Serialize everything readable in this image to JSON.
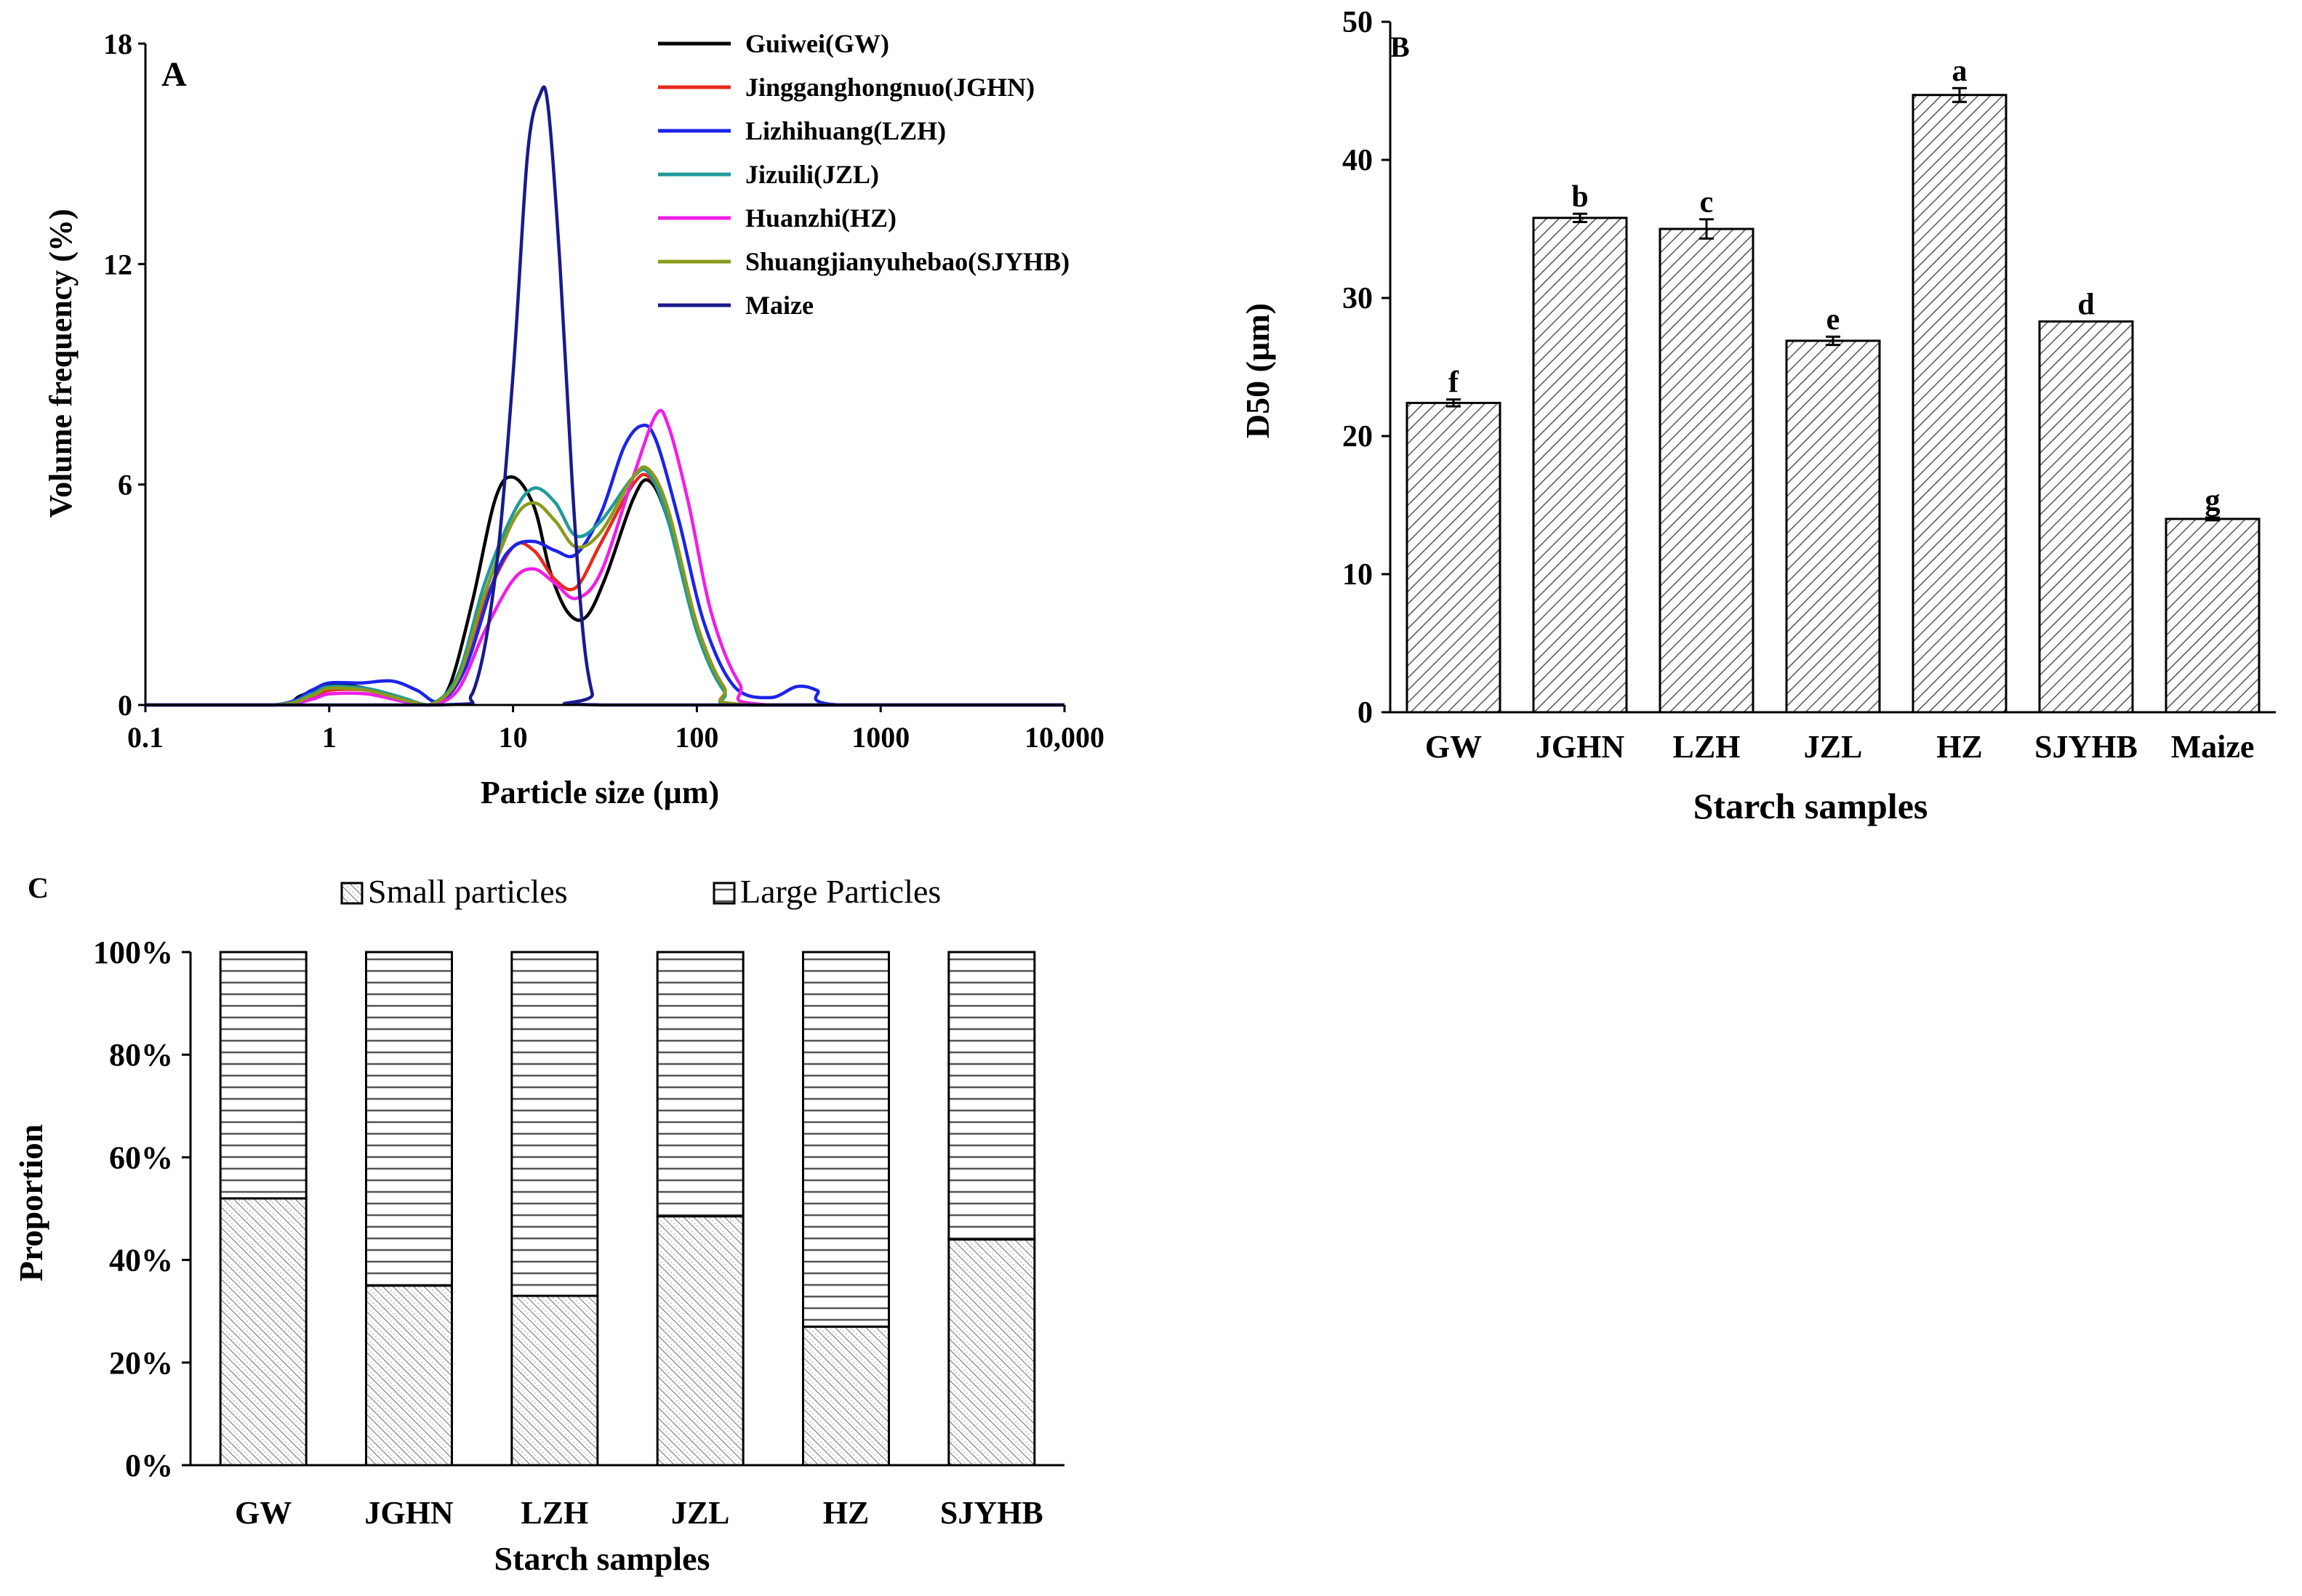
{
  "panel_labels": {
    "a": "A",
    "b": "B",
    "c": "C"
  },
  "chart_data": [
    {
      "id": "A",
      "type": "line",
      "xlabel": "Particle size (µm)",
      "ylabel": "Volume frequency (%)",
      "xscale": "log",
      "xlim": [
        0.1,
        10000
      ],
      "ylim": [
        0,
        18
      ],
      "xticks": [
        0.1,
        1,
        10,
        100,
        1000,
        10000
      ],
      "xtick_labels": [
        "0.1",
        "1",
        "10",
        "100",
        "1000",
        "10,000"
      ],
      "yticks": [
        0,
        6,
        12,
        18
      ],
      "ytick_labels": [
        "0",
        "6",
        "12",
        "18"
      ],
      "legend": "top-right",
      "series": [
        {
          "name": "Guiwei(GW)",
          "color": "#000000",
          "points": [
            [
              0.1,
              0
            ],
            [
              0.5,
              0
            ],
            [
              0.7,
              0.25
            ],
            [
              1,
              0.55
            ],
            [
              1.6,
              0.45
            ],
            [
              2.5,
              0.15
            ],
            [
              3.5,
              0
            ],
            [
              4.5,
              0.5
            ],
            [
              6,
              2.8
            ],
            [
              8,
              5.6
            ],
            [
              10,
              6.2
            ],
            [
              13,
              5.4
            ],
            [
              16,
              3.6
            ],
            [
              20,
              2.5
            ],
            [
              25,
              2.4
            ],
            [
              32,
              3.5
            ],
            [
              45,
              5.6
            ],
            [
              55,
              6.1
            ],
            [
              70,
              5.0
            ],
            [
              100,
              2.0
            ],
            [
              140,
              0.4
            ],
            [
              200,
              0
            ],
            [
              10000,
              0
            ]
          ]
        },
        {
          "name": "Jingganghongnuo(JGHN)",
          "color": "#e8281e",
          "points": [
            [
              0.1,
              0
            ],
            [
              0.5,
              0
            ],
            [
              0.8,
              0.2
            ],
            [
              1,
              0.4
            ],
            [
              1.6,
              0.4
            ],
            [
              2.5,
              0.15
            ],
            [
              3.5,
              0
            ],
            [
              5,
              0.7
            ],
            [
              7,
              2.8
            ],
            [
              10,
              4.3
            ],
            [
              13,
              4.2
            ],
            [
              17,
              3.4
            ],
            [
              22,
              3.2
            ],
            [
              30,
              4.4
            ],
            [
              45,
              6.0
            ],
            [
              55,
              6.2
            ],
            [
              70,
              5.2
            ],
            [
              100,
              2.2
            ],
            [
              140,
              0.5
            ],
            [
              200,
              0
            ],
            [
              10000,
              0
            ]
          ]
        },
        {
          "name": "Lizhihuang(LZH)",
          "color": "#1b24e8",
          "points": [
            [
              0.1,
              0
            ],
            [
              0.5,
              0
            ],
            [
              0.8,
              0.4
            ],
            [
              1,
              0.6
            ],
            [
              1.5,
              0.6
            ],
            [
              2.2,
              0.65
            ],
            [
              3,
              0.4
            ],
            [
              4,
              0.1
            ],
            [
              5.5,
              1.0
            ],
            [
              8,
              3.5
            ],
            [
              10,
              4.3
            ],
            [
              13,
              4.45
            ],
            [
              17,
              4.2
            ],
            [
              22,
              4.1
            ],
            [
              30,
              5.2
            ],
            [
              40,
              7.0
            ],
            [
              50,
              7.6
            ],
            [
              60,
              7.2
            ],
            [
              80,
              5.0
            ],
            [
              110,
              2.2
            ],
            [
              160,
              0.5
            ],
            [
              250,
              0.2
            ],
            [
              350,
              0.5
            ],
            [
              450,
              0.4
            ],
            [
              600,
              0
            ],
            [
              10000,
              0
            ]
          ]
        },
        {
          "name": "Jizuili(JZL)",
          "color": "#1f9a9a",
          "points": [
            [
              0.1,
              0
            ],
            [
              0.5,
              0
            ],
            [
              0.8,
              0.3
            ],
            [
              1,
              0.5
            ],
            [
              1.6,
              0.45
            ],
            [
              2.5,
              0.2
            ],
            [
              3.5,
              0
            ],
            [
              5,
              0.8
            ],
            [
              7,
              3.3
            ],
            [
              10,
              5.2
            ],
            [
              13,
              5.9
            ],
            [
              17,
              5.5
            ],
            [
              22,
              4.6
            ],
            [
              30,
              5.0
            ],
            [
              45,
              6.2
            ],
            [
              55,
              6.3
            ],
            [
              70,
              5.0
            ],
            [
              100,
              2.0
            ],
            [
              140,
              0.4
            ],
            [
              200,
              0
            ],
            [
              10000,
              0
            ]
          ]
        },
        {
          "name": "Huanzhi(HZ)",
          "color": "#f01ee8",
          "points": [
            [
              0.1,
              0
            ],
            [
              0.5,
              0
            ],
            [
              0.8,
              0.15
            ],
            [
              1,
              0.3
            ],
            [
              1.6,
              0.3
            ],
            [
              2.5,
              0.1
            ],
            [
              3.5,
              0
            ],
            [
              5,
              0.4
            ],
            [
              7,
              2.0
            ],
            [
              10,
              3.4
            ],
            [
              13,
              3.7
            ],
            [
              17,
              3.3
            ],
            [
              22,
              2.9
            ],
            [
              30,
              3.6
            ],
            [
              45,
              6.2
            ],
            [
              60,
              7.9
            ],
            [
              70,
              7.6
            ],
            [
              90,
              5.5
            ],
            [
              120,
              2.5
            ],
            [
              170,
              0.6
            ],
            [
              250,
              0
            ],
            [
              10000,
              0
            ]
          ]
        },
        {
          "name": "Shuangjianyuhebao(SJYHB)",
          "color": "#8a9a1a",
          "points": [
            [
              0.1,
              0
            ],
            [
              0.5,
              0
            ],
            [
              0.8,
              0.25
            ],
            [
              1,
              0.45
            ],
            [
              1.6,
              0.4
            ],
            [
              2.5,
              0.15
            ],
            [
              3.5,
              0
            ],
            [
              5,
              0.7
            ],
            [
              7,
              3.0
            ],
            [
              10,
              5.0
            ],
            [
              13,
              5.5
            ],
            [
              17,
              5.0
            ],
            [
              22,
              4.3
            ],
            [
              30,
              4.7
            ],
            [
              45,
              6.2
            ],
            [
              55,
              6.4
            ],
            [
              70,
              5.3
            ],
            [
              100,
              2.2
            ],
            [
              140,
              0.5
            ],
            [
              200,
              0
            ],
            [
              10000,
              0
            ]
          ]
        },
        {
          "name": "Maize",
          "color": "#1a1a8c",
          "points": [
            [
              0.1,
              0
            ],
            [
              4,
              0
            ],
            [
              6,
              0.3
            ],
            [
              8,
              3.5
            ],
            [
              10,
              9.0
            ],
            [
              12,
              15.0
            ],
            [
              14,
              16.6
            ],
            [
              15.5,
              16.3
            ],
            [
              18,
              12.0
            ],
            [
              21,
              6.0
            ],
            [
              24,
              2.0
            ],
            [
              27,
              0.3
            ],
            [
              30,
              0
            ],
            [
              10000,
              0
            ]
          ]
        }
      ]
    },
    {
      "id": "B",
      "type": "bar",
      "title": "",
      "xlabel": "Starch samples",
      "ylabel": "D50 (µm)",
      "ylim": [
        0,
        50
      ],
      "yticks": [
        0,
        10,
        20,
        30,
        40,
        50
      ],
      "ytick_labels": [
        "0",
        "10",
        "20",
        "30",
        "40",
        "50"
      ],
      "categories": [
        "GW",
        "JGHN",
        "LZH",
        "JZL",
        "HZ",
        "SJYHB",
        "Maize"
      ],
      "values": [
        22.4,
        35.8,
        35.0,
        26.9,
        44.7,
        28.3,
        14.0
      ],
      "errors": [
        0.25,
        0.3,
        0.7,
        0.3,
        0.5,
        0.0,
        0.1
      ],
      "significance": [
        "f",
        "b",
        "c",
        "e",
        "a",
        "d",
        "g"
      ]
    },
    {
      "id": "C",
      "type": "bar",
      "stacked": true,
      "xlabel": "Starch samples",
      "ylabel": "Proportion",
      "ylim": [
        0,
        100
      ],
      "yticks": [
        0,
        20,
        40,
        60,
        80,
        100
      ],
      "ytick_labels": [
        "0%",
        "20%",
        "40%",
        "60%",
        "80%",
        "100%"
      ],
      "categories": [
        "GW",
        "JGHN",
        "LZH",
        "JZL",
        "HZ",
        "SJYHB"
      ],
      "legend": "top",
      "series": [
        {
          "name": "Small particles",
          "values": [
            52,
            35,
            33,
            48.5,
            27,
            44
          ]
        },
        {
          "name": "Large Particles",
          "values": [
            48,
            65,
            67,
            51.5,
            73,
            56
          ]
        }
      ]
    }
  ]
}
